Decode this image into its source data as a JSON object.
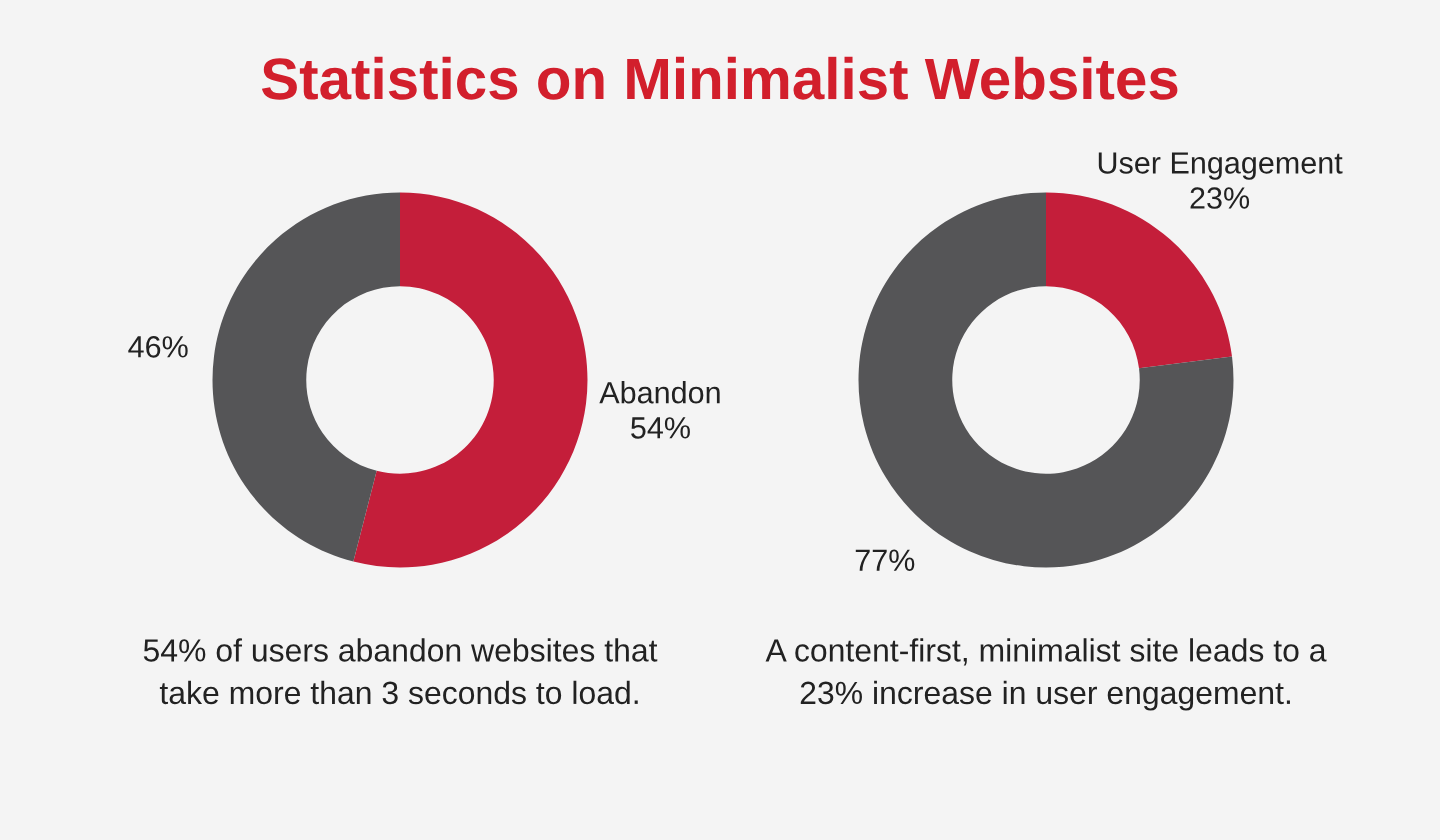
{
  "chart_data": [
    {
      "type": "donut",
      "title": "Statistics on Minimalist Websites",
      "categories": [
        "Abandon",
        null
      ],
      "values": [
        54,
        46
      ],
      "colors": [
        "#c41e3a",
        "#555557"
      ],
      "value_labels": [
        "54%",
        "46%"
      ],
      "annotations": [
        "54% of users abandon websites that\ntake more than 3 seconds to load."
      ]
    },
    {
      "type": "donut",
      "categories": [
        "User Engagement",
        null
      ],
      "values": [
        23,
        77
      ],
      "colors": [
        "#c41e3a",
        "#555557"
      ],
      "value_labels": [
        "23%",
        "77%"
      ],
      "annotations": [
        "A content-first, minimalist site leads to a\n23% increase in user engagement."
      ]
    }
  ]
}
